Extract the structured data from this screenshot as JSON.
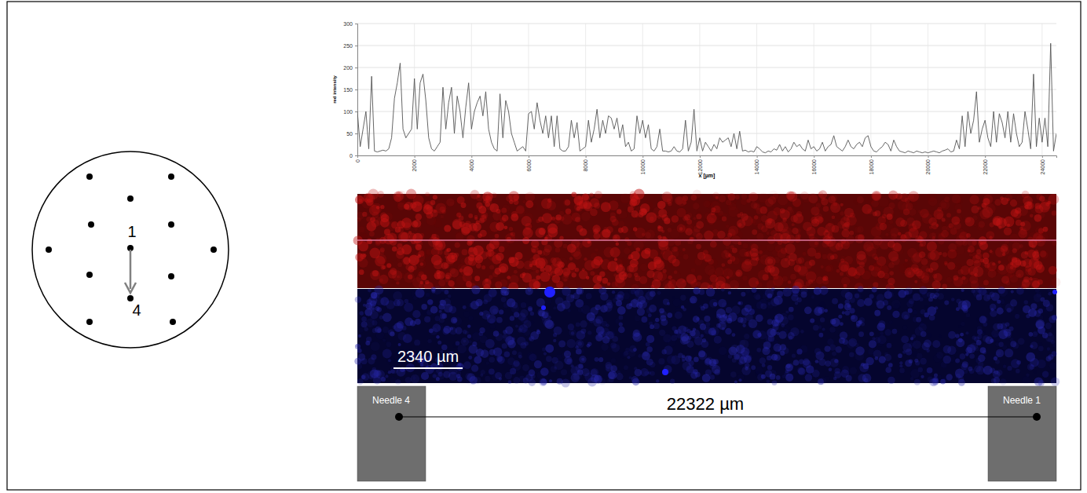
{
  "chart_data": {
    "type": "line",
    "x_label": "x [µm]",
    "y_label": "red intensity",
    "color": "#555555",
    "grid": true,
    "xlim": [
      0,
      24500
    ],
    "ylim": [
      0,
      300
    ],
    "xticks": [
      0,
      2000,
      4000,
      6000,
      8000,
      10000,
      12000,
      14000,
      16000,
      18000,
      20000,
      22000,
      24000
    ],
    "yticks": [
      0,
      50,
      100,
      150,
      200,
      250,
      300
    ],
    "x": [
      0,
      100,
      200,
      300,
      400,
      500,
      600,
      700,
      800,
      900,
      1000,
      1100,
      1200,
      1300,
      1400,
      1500,
      1600,
      1700,
      1800,
      1900,
      2000,
      2100,
      2200,
      2300,
      2400,
      2500,
      2600,
      2700,
      2800,
      2900,
      3000,
      3100,
      3200,
      3300,
      3400,
      3500,
      3600,
      3700,
      3800,
      3900,
      4000,
      4100,
      4200,
      4300,
      4400,
      4500,
      4600,
      4700,
      4800,
      4900,
      5000,
      5100,
      5200,
      5300,
      5400,
      5500,
      5600,
      5700,
      5800,
      5900,
      6000,
      6100,
      6200,
      6300,
      6400,
      6500,
      6600,
      6700,
      6800,
      6900,
      7000,
      7100,
      7200,
      7300,
      7400,
      7500,
      7600,
      7700,
      7800,
      7900,
      8000,
      8100,
      8200,
      8300,
      8400,
      8500,
      8600,
      8700,
      8800,
      8900,
      9000,
      9100,
      9200,
      9300,
      9400,
      9500,
      9600,
      9700,
      9800,
      9900,
      10000,
      10100,
      10200,
      10300,
      10400,
      10500,
      10600,
      10700,
      10800,
      10900,
      11000,
      11100,
      11200,
      11300,
      11400,
      11500,
      11600,
      11700,
      11800,
      11900,
      12000,
      12100,
      12200,
      12300,
      12400,
      12500,
      12600,
      12700,
      12800,
      12900,
      13000,
      13100,
      13200,
      13300,
      13400,
      13500,
      13600,
      13700,
      13800,
      13900,
      14000,
      14100,
      14200,
      14300,
      14400,
      14500,
      14600,
      14700,
      14800,
      14900,
      15000,
      15100,
      15200,
      15300,
      15400,
      15500,
      15600,
      15700,
      15800,
      15900,
      16000,
      16100,
      16200,
      16300,
      16400,
      16500,
      16600,
      16700,
      16800,
      16900,
      17000,
      17100,
      17200,
      17300,
      17400,
      17500,
      17600,
      17700,
      17800,
      17900,
      18000,
      18100,
      18200,
      18300,
      18400,
      18500,
      18600,
      18700,
      18800,
      18900,
      19000,
      19100,
      19200,
      19300,
      19400,
      19500,
      19600,
      19700,
      19800,
      19900,
      20000,
      20100,
      20200,
      20300,
      20400,
      20500,
      20600,
      20700,
      20800,
      20900,
      21000,
      21100,
      21200,
      21300,
      21400,
      21500,
      21600,
      21700,
      21800,
      21900,
      22000,
      22100,
      22200,
      22300,
      22400,
      22500,
      22600,
      22700,
      22800,
      22900,
      23000,
      23100,
      23200,
      23300,
      23400,
      23500,
      23600,
      23700,
      23800,
      23900,
      24000,
      24100,
      24200,
      24300,
      24400,
      24500
    ],
    "values": [
      100,
      20,
      60,
      100,
      15,
      180,
      10,
      8,
      10,
      12,
      10,
      15,
      40,
      130,
      165,
      210,
      60,
      40,
      50,
      60,
      175,
      60,
      165,
      185,
      125,
      40,
      15,
      10,
      20,
      30,
      155,
      60,
      120,
      155,
      50,
      135,
      100,
      40,
      110,
      165,
      60,
      100,
      120,
      135,
      90,
      145,
      60,
      30,
      15,
      10,
      140,
      40,
      125,
      100,
      50,
      30,
      10,
      15,
      20,
      10,
      95,
      100,
      60,
      120,
      80,
      50,
      90,
      40,
      90,
      20,
      90,
      15,
      10,
      10,
      20,
      80,
      40,
      75,
      10,
      15,
      20,
      80,
      30,
      60,
      105,
      40,
      80,
      50,
      90,
      85,
      60,
      85,
      40,
      70,
      20,
      30,
      10,
      15,
      90,
      50,
      80,
      40,
      70,
      15,
      10,
      20,
      60,
      10,
      10,
      8,
      10,
      20,
      10,
      8,
      15,
      80,
      10,
      30,
      105,
      10,
      40,
      10,
      30,
      20,
      10,
      25,
      15,
      40,
      30,
      35,
      40,
      20,
      50,
      15,
      55,
      10,
      12,
      8,
      10,
      8,
      20,
      15,
      8,
      6,
      10,
      8,
      15,
      12,
      25,
      10,
      20,
      8,
      15,
      30,
      20,
      25,
      15,
      10,
      35,
      15,
      20,
      10,
      15,
      30,
      10,
      20,
      25,
      45,
      20,
      15,
      10,
      20,
      35,
      20,
      15,
      25,
      30,
      20,
      40,
      45,
      20,
      10,
      8,
      15,
      20,
      30,
      25,
      10,
      35,
      20,
      10,
      8,
      6,
      10,
      8,
      6,
      10,
      8,
      6,
      8,
      6,
      8,
      10,
      8,
      6,
      10,
      12,
      15,
      8,
      10,
      35,
      15,
      90,
      20,
      100,
      50,
      80,
      145,
      30,
      60,
      80,
      40,
      20,
      100,
      30,
      95,
      75,
      40,
      100,
      30,
      95,
      50,
      20,
      30,
      100,
      60,
      15,
      185,
      20,
      85,
      30,
      85,
      20,
      255,
      10,
      50
    ]
  },
  "diagram": {
    "start_label": "1",
    "end_label": "4"
  },
  "images": {
    "scale_bar": "2340 µm",
    "left_label": "Needle 4",
    "right_label": "Needle 1",
    "distance": "22322 µm"
  }
}
